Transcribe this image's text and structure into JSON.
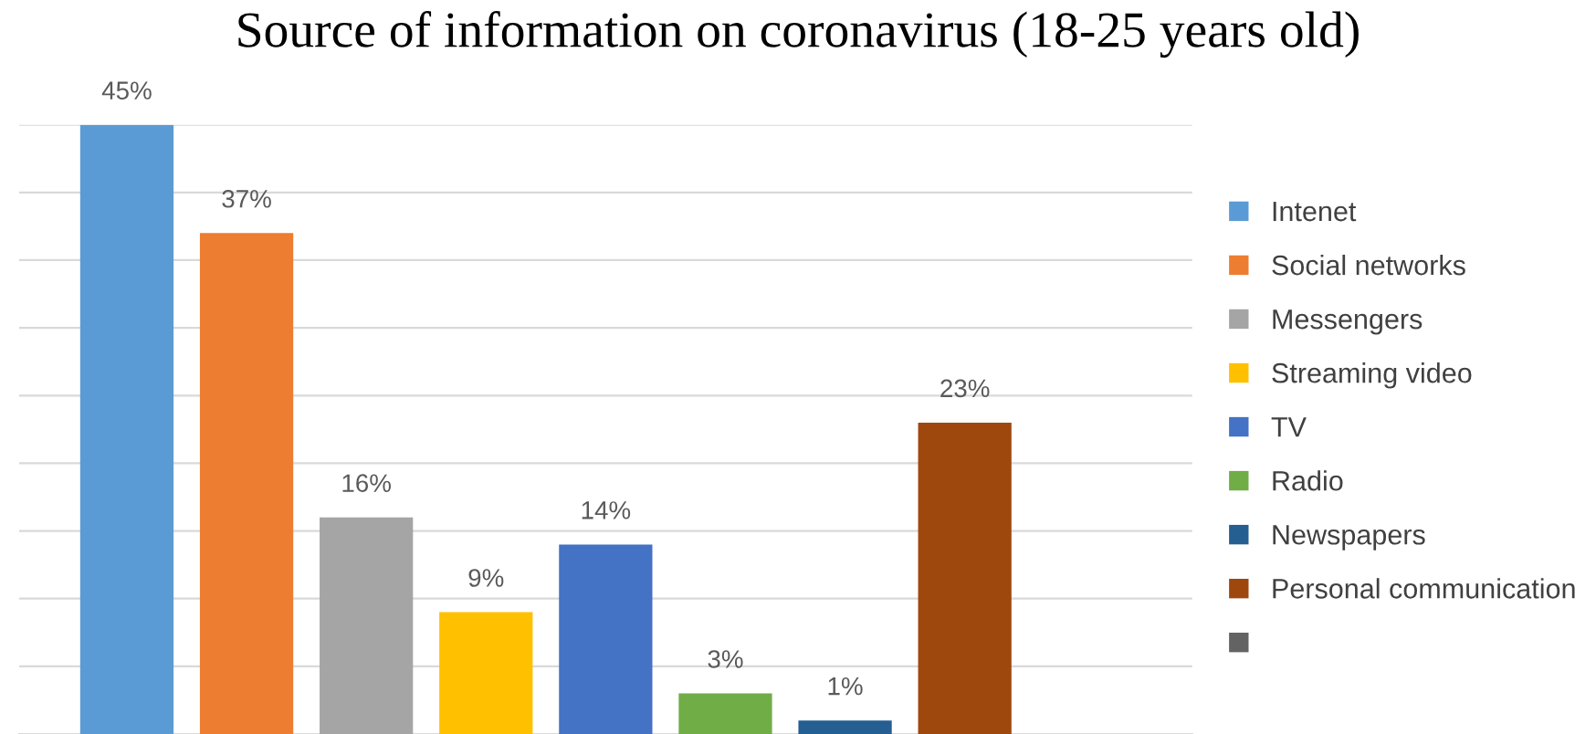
{
  "chart_data": {
    "type": "bar",
    "title": "Source of information on coronavirus (18-25 years old)",
    "categories": [
      null
    ],
    "series": [
      {
        "name": "Intenet",
        "color": "#5b9bd5",
        "values": [
          45
        ],
        "value_labels": [
          "45%"
        ]
      },
      {
        "name": "Social networks",
        "color": "#ed7d31",
        "values": [
          37
        ],
        "value_labels": [
          "37%"
        ]
      },
      {
        "name": "Messengers",
        "color": "#a5a5a5",
        "values": [
          16
        ],
        "value_labels": [
          "16%"
        ]
      },
      {
        "name": "Streaming video",
        "color": "#ffc000",
        "values": [
          9
        ],
        "value_labels": [
          "9%"
        ]
      },
      {
        "name": "TV",
        "color": "#4472c4",
        "values": [
          14
        ],
        "value_labels": [
          "14%"
        ]
      },
      {
        "name": "Radio",
        "color": "#70ad47",
        "values": [
          3
        ],
        "value_labels": [
          "3%"
        ]
      },
      {
        "name": "Newspapers",
        "color": "#255e91",
        "values": [
          1
        ],
        "value_labels": [
          "1%"
        ]
      },
      {
        "name": "Personal communication",
        "color": "#9e480e",
        "values": [
          23
        ],
        "value_labels": [
          "23%"
        ]
      },
      {
        "color": "#636363",
        "values": [
          null
        ]
      }
    ],
    "ylim": [
      0,
      45
    ],
    "yticks": [
      {
        "value": 0,
        "label": null
      },
      {
        "value": 5,
        "label": null
      },
      {
        "value": 10,
        "label": null
      },
      {
        "value": 15,
        "label": null
      },
      {
        "value": 20,
        "label": null
      },
      {
        "value": 25,
        "label": null
      },
      {
        "value": 30,
        "label": null
      },
      {
        "value": 35,
        "label": null
      },
      {
        "value": 40,
        "label": null
      },
      {
        "value": 45,
        "label": null
      }
    ],
    "grid": "y",
    "legend": "right"
  }
}
